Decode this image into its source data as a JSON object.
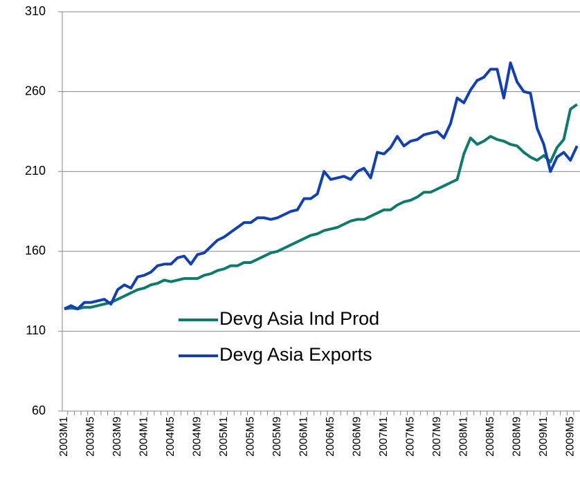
{
  "chart_data": {
    "type": "line",
    "categories": [
      "2003M1",
      null,
      null,
      null,
      "2003M5",
      null,
      null,
      null,
      "2003M9",
      null,
      null,
      null,
      "2004M1",
      null,
      null,
      null,
      "2004M5",
      null,
      null,
      null,
      "2004M9",
      null,
      null,
      null,
      "2005M1",
      null,
      null,
      null,
      "2005M5",
      null,
      null,
      null,
      "2005M9",
      null,
      null,
      null,
      "2006M1",
      null,
      null,
      null,
      "2006M5",
      null,
      null,
      null,
      "2006M9",
      null,
      null,
      null,
      "2007M1",
      null,
      null,
      null,
      "2007M5",
      null,
      null,
      null,
      "2007M9",
      null,
      null,
      null,
      "2008M1",
      null,
      null,
      null,
      "2008M5",
      null,
      null,
      null,
      "2008M9",
      null,
      null,
      null,
      "2009M1",
      null,
      null,
      null,
      "2009M5",
      null
    ],
    "series": [
      {
        "name": "Devg Asia Ind Prod",
        "color": "#0e7a6b",
        "values": [
          124,
          124.5,
          124,
          125,
          125,
          126,
          127,
          128,
          130,
          132,
          134,
          136,
          137,
          139,
          140,
          142,
          141,
          142,
          143,
          143,
          143,
          145,
          146,
          148,
          149,
          151,
          151,
          153,
          153,
          155,
          157,
          159,
          160,
          162,
          164,
          166,
          168,
          170,
          171,
          173,
          174,
          175,
          177,
          179,
          180,
          180,
          182,
          184,
          186,
          186,
          189,
          191,
          192,
          194,
          197,
          197,
          199,
          201,
          203,
          205,
          221,
          231,
          227,
          229,
          232,
          230,
          229,
          227,
          226,
          222,
          219,
          217,
          220,
          216,
          225,
          230,
          249,
          252
        ]
      },
      {
        "name": "Devg Asia Exports",
        "color": "#1240b0",
        "values": [
          124,
          126,
          124,
          128,
          128,
          129,
          130,
          127,
          136,
          139,
          137,
          144,
          145,
          147,
          151,
          152,
          152,
          156,
          157,
          152,
          158,
          159,
          163,
          167,
          169,
          172,
          175,
          178,
          178,
          181,
          181,
          180,
          181,
          183,
          185,
          186,
          193,
          193,
          196,
          210,
          205,
          206,
          207,
          205,
          210,
          212,
          206,
          222,
          221,
          225,
          232,
          226,
          229,
          230,
          233,
          234,
          235,
          231,
          240,
          256,
          253,
          261,
          267,
          269,
          274,
          274,
          256,
          278,
          266,
          260,
          259,
          237,
          227,
          210,
          219,
          222,
          217,
          226
        ]
      }
    ],
    "ylim": [
      60,
      310
    ],
    "yticks": [
      60,
      110,
      160,
      210,
      260,
      310
    ],
    "grid": true
  }
}
